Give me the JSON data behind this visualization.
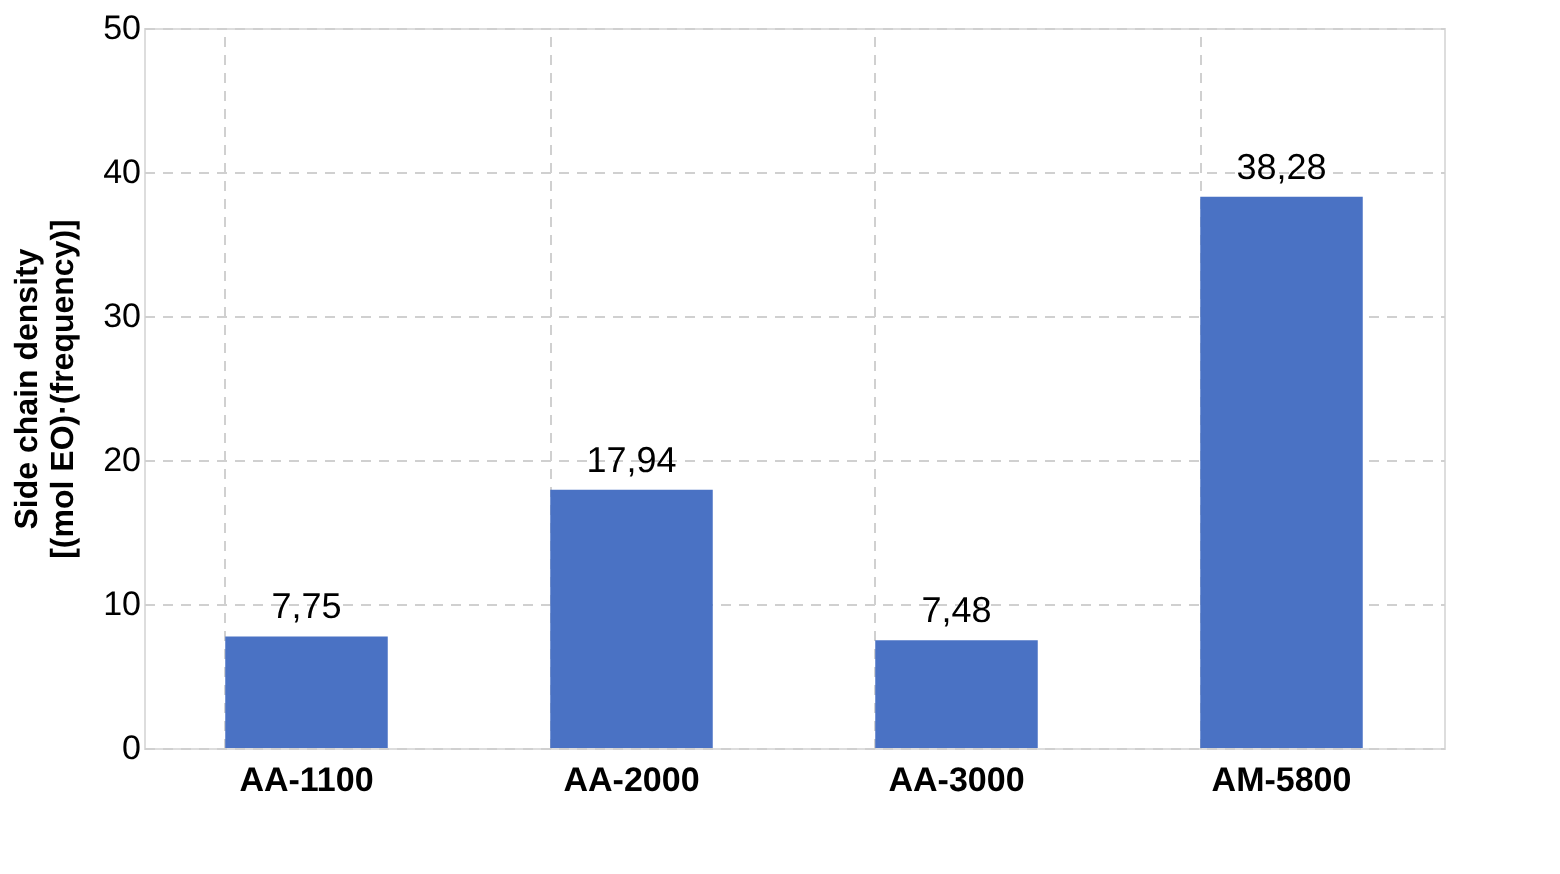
{
  "chart_data": {
    "type": "bar",
    "ylabel": "Side chain density\n[(mol EO)·(frequency)]",
    "categories": [
      "AA-1100",
      "AA-2000",
      "AA-3000",
      "AM-5800"
    ],
    "values": [
      7.75,
      17.94,
      7.48,
      38.28
    ],
    "value_labels": [
      "7,75",
      "17,94",
      "7,48",
      "38,28"
    ],
    "color": "#4a72c4",
    "ylim": [
      0,
      50
    ],
    "yticks": [
      0,
      10,
      20,
      30,
      40,
      50
    ],
    "grid": true
  }
}
